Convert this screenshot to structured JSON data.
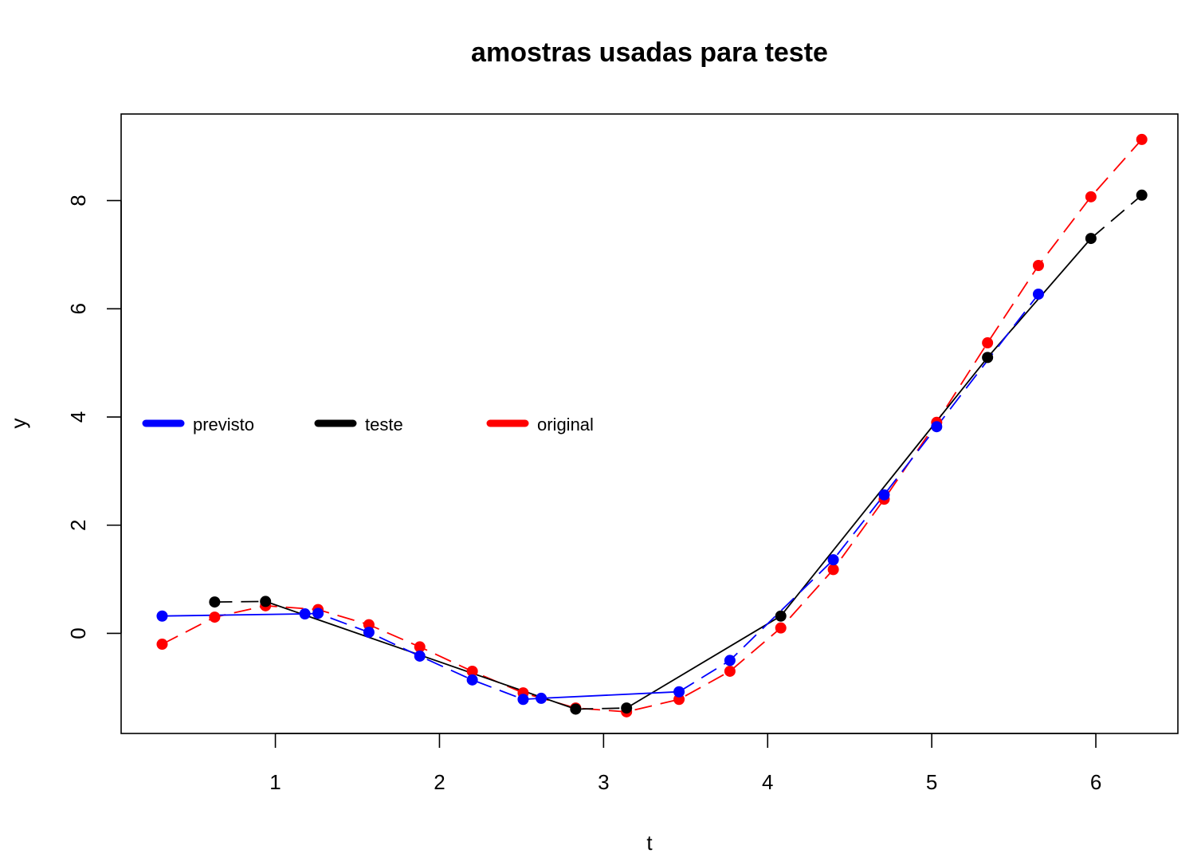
{
  "chart_data": {
    "type": "line",
    "title": "amostras usadas para teste",
    "xlabel": "t",
    "ylabel": "y",
    "xlim": [
      0.06,
      6.5
    ],
    "ylim": [
      -1.85,
      9.6
    ],
    "xticks": [
      1,
      2,
      3,
      4,
      5,
      6
    ],
    "yticks": [
      0,
      2,
      4,
      6,
      8
    ],
    "grid": false,
    "legend_position": "left",
    "series": [
      {
        "name": "previsto",
        "color": "#0000ff",
        "points": [
          [
            0.31,
            0.32
          ],
          [
            1.18,
            0.36
          ],
          [
            1.26,
            0.37
          ],
          [
            1.57,
            0.02
          ],
          [
            1.88,
            -0.42
          ],
          [
            2.2,
            -0.86
          ],
          [
            2.51,
            -1.22
          ],
          [
            2.62,
            -1.2
          ],
          [
            3.46,
            -1.08
          ],
          [
            3.77,
            -0.5
          ],
          [
            4.4,
            1.36
          ],
          [
            4.71,
            2.56
          ],
          [
            5.03,
            3.82
          ],
          [
            5.65,
            6.27
          ]
        ],
        "line_segments": [
          {
            "from": 0.31,
            "to": 1.18,
            "style": "solid"
          },
          {
            "from": 1.18,
            "to": 2.62,
            "style": "dashed"
          },
          {
            "from": 2.62,
            "to": 3.46,
            "style": "solid"
          },
          {
            "from": 3.46,
            "to": 5.65,
            "style": "dashed"
          }
        ]
      },
      {
        "name": "teste",
        "color": "#000000",
        "points": [
          [
            0.63,
            0.58
          ],
          [
            0.94,
            0.59
          ],
          [
            2.83,
            -1.4
          ],
          [
            3.14,
            -1.38
          ],
          [
            4.08,
            0.32
          ],
          [
            5.34,
            5.1
          ],
          [
            5.97,
            7.3
          ],
          [
            6.28,
            8.1
          ]
        ],
        "line_segments": [
          {
            "from": 0.63,
            "to": 0.94,
            "style": "dashed"
          },
          {
            "from": 0.94,
            "to": 2.83,
            "style": "solid"
          },
          {
            "from": 2.83,
            "to": 3.14,
            "style": "dashed"
          },
          {
            "from": 3.14,
            "to": 4.08,
            "style": "solid"
          },
          {
            "from": 4.08,
            "to": 5.34,
            "style": "solid"
          },
          {
            "from": 5.34,
            "to": 5.97,
            "style": "solid"
          },
          {
            "from": 5.97,
            "to": 6.28,
            "style": "dashed"
          }
        ]
      },
      {
        "name": "original",
        "color": "#ff0000",
        "points": [
          [
            0.31,
            -0.2
          ],
          [
            0.63,
            0.3
          ],
          [
            0.94,
            0.51
          ],
          [
            1.26,
            0.44
          ],
          [
            1.57,
            0.16
          ],
          [
            1.88,
            -0.25
          ],
          [
            2.2,
            -0.7
          ],
          [
            2.51,
            -1.1
          ],
          [
            2.83,
            -1.38
          ],
          [
            3.14,
            -1.45
          ],
          [
            3.46,
            -1.22
          ],
          [
            3.77,
            -0.7
          ],
          [
            4.08,
            0.1
          ],
          [
            4.4,
            1.18
          ],
          [
            4.71,
            2.48
          ],
          [
            5.03,
            3.9
          ],
          [
            5.34,
            5.37
          ],
          [
            5.65,
            6.8
          ],
          [
            5.97,
            8.07
          ],
          [
            6.28,
            9.13
          ]
        ],
        "line_segments": [
          {
            "from": 0.31,
            "to": 6.28,
            "style": "dashed"
          }
        ]
      }
    ]
  }
}
